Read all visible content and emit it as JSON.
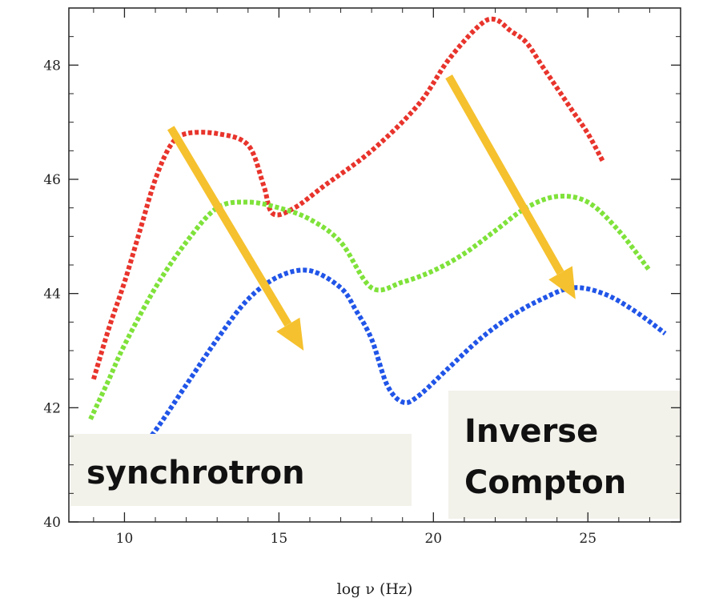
{
  "chart_data": {
    "type": "line",
    "title": "",
    "xlabel": "log ν (Hz)",
    "ylabel": "",
    "xlim": [
      8.2,
      28
    ],
    "ylim": [
      40,
      49
    ],
    "xticks": [
      10,
      15,
      20,
      25
    ],
    "yticks": [
      40,
      42,
      44,
      46,
      48
    ],
    "grid": false,
    "legend": "none",
    "line_style": "dotted",
    "series": [
      {
        "color": "#e8342c",
        "points": [
          [
            9.0,
            42.5
          ],
          [
            9.5,
            43.4
          ],
          [
            10.0,
            44.2
          ],
          [
            10.5,
            45.1
          ],
          [
            11.0,
            46.0
          ],
          [
            11.5,
            46.6
          ],
          [
            12.0,
            46.8
          ],
          [
            13.0,
            46.8
          ],
          [
            14.0,
            46.6
          ],
          [
            14.5,
            45.9
          ],
          [
            14.8,
            45.4
          ],
          [
            15.5,
            45.5
          ],
          [
            16.5,
            45.9
          ],
          [
            18.0,
            46.5
          ],
          [
            19.5,
            47.3
          ],
          [
            20.5,
            48.1
          ],
          [
            21.5,
            48.7
          ],
          [
            22.0,
            48.8
          ],
          [
            22.5,
            48.6
          ],
          [
            23.0,
            48.4
          ],
          [
            23.5,
            48.0
          ],
          [
            24.0,
            47.6
          ],
          [
            24.5,
            47.2
          ],
          [
            25.0,
            46.8
          ],
          [
            25.5,
            46.3
          ]
        ]
      },
      {
        "color": "#7fe23a",
        "points": [
          [
            8.9,
            41.8
          ],
          [
            9.5,
            42.5
          ],
          [
            10.0,
            43.1
          ],
          [
            11.0,
            44.1
          ],
          [
            12.0,
            44.9
          ],
          [
            13.0,
            45.5
          ],
          [
            14.0,
            45.6
          ],
          [
            15.0,
            45.5
          ],
          [
            16.0,
            45.3
          ],
          [
            17.0,
            44.9
          ],
          [
            18.0,
            44.1
          ],
          [
            19.0,
            44.2
          ],
          [
            20.0,
            44.4
          ],
          [
            21.0,
            44.7
          ],
          [
            22.0,
            45.1
          ],
          [
            23.0,
            45.5
          ],
          [
            24.0,
            45.7
          ],
          [
            25.0,
            45.6
          ],
          [
            26.0,
            45.1
          ],
          [
            27.0,
            44.4
          ]
        ]
      },
      {
        "color": "#2155e8",
        "points": [
          [
            9.5,
            40.4
          ],
          [
            10.0,
            40.9
          ],
          [
            11.0,
            41.6
          ],
          [
            12.0,
            42.4
          ],
          [
            13.0,
            43.2
          ],
          [
            14.0,
            43.9
          ],
          [
            15.0,
            44.3
          ],
          [
            16.0,
            44.4
          ],
          [
            17.0,
            44.1
          ],
          [
            17.5,
            43.7
          ],
          [
            18.0,
            43.2
          ],
          [
            18.5,
            42.4
          ],
          [
            19.0,
            42.1
          ],
          [
            19.5,
            42.2
          ],
          [
            20.5,
            42.7
          ],
          [
            21.5,
            43.2
          ],
          [
            22.5,
            43.6
          ],
          [
            23.5,
            43.9
          ],
          [
            24.5,
            44.1
          ],
          [
            25.5,
            44.0
          ],
          [
            26.5,
            43.7
          ],
          [
            27.5,
            43.3
          ]
        ]
      }
    ],
    "arrows": [
      {
        "color": "#f5c12e",
        "from": [
          11.5,
          46.9
        ],
        "to": [
          15.8,
          43.0
        ]
      },
      {
        "color": "#f5c12e",
        "from": [
          20.5,
          47.8
        ],
        "to": [
          24.6,
          43.9
        ]
      }
    ],
    "annotations": [
      {
        "lines": [
          "synchrotron"
        ],
        "background": "#f2f1ea"
      },
      {
        "lines": [
          "Inverse",
          "Compton"
        ],
        "background": "#f2f1ea"
      }
    ]
  }
}
